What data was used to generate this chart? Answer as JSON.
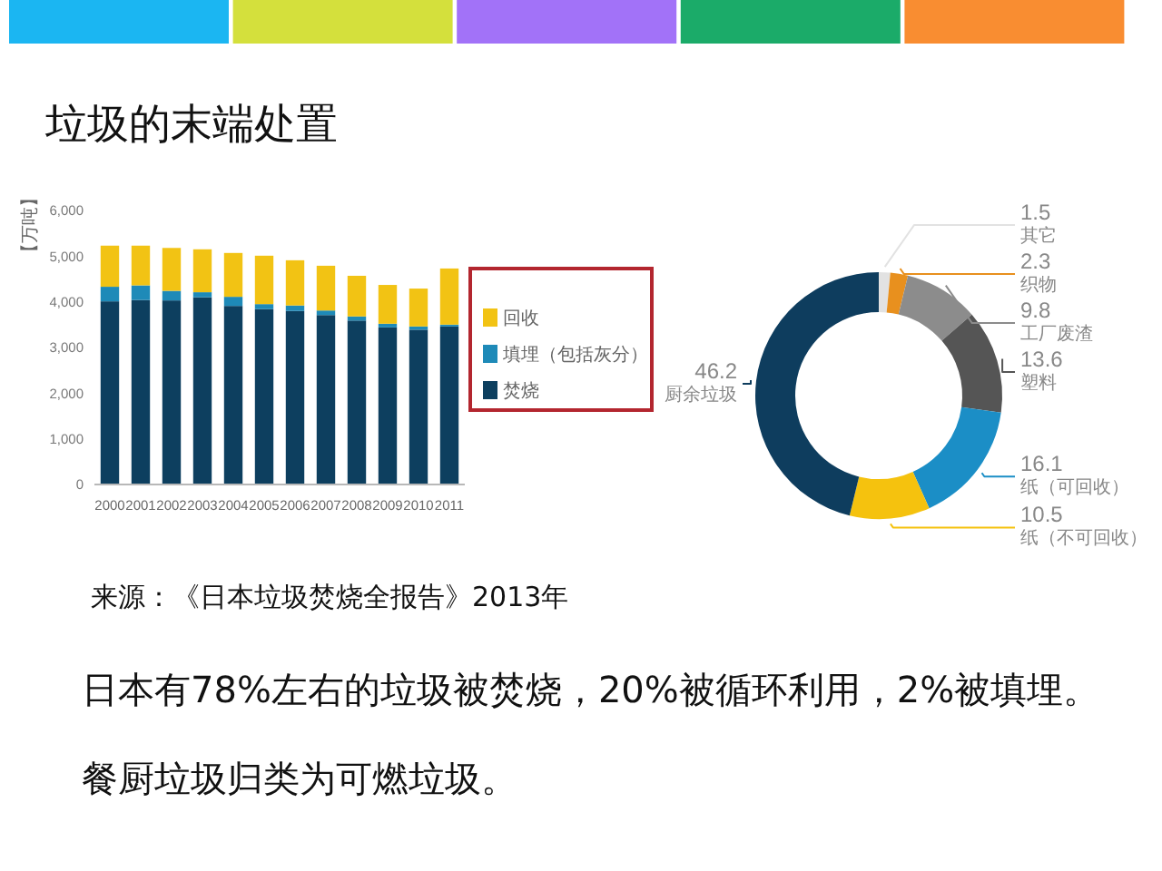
{
  "chart_data": [
    {
      "type": "bar",
      "title": "垃圾的末端处置",
      "ylabel": "【万吨】",
      "categories": [
        "2000",
        "2001",
        "2002",
        "2003",
        "2004",
        "2005",
        "2006",
        "2007",
        "2008",
        "2009",
        "2010",
        "2011"
      ],
      "stacked": true,
      "series": [
        {
          "name": "焚烧",
          "color": "#0d3f5f",
          "values": [
            4010,
            4040,
            4030,
            4100,
            3910,
            3840,
            3800,
            3710,
            3590,
            3440,
            3390,
            3460
          ]
        },
        {
          "name": "填埋（包括灰分）",
          "color": "#1e8ab8",
          "values": [
            320,
            320,
            210,
            110,
            200,
            110,
            120,
            100,
            90,
            80,
            70,
            40
          ]
        },
        {
          "name": "回收",
          "color": "#f2c314",
          "values": [
            900,
            870,
            940,
            940,
            960,
            1060,
            990,
            980,
            890,
            850,
            830,
            1230
          ]
        }
      ],
      "ylim": [
        0,
        6000
      ],
      "yticks": [
        0,
        {
          "value": 1000,
          "label": "1,000"
        },
        {
          "value": 2000,
          "label": "2,000"
        },
        {
          "value": 3000,
          "label": "3,000"
        },
        {
          "value": 4000,
          "label": "4,000"
        },
        {
          "value": 5000,
          "label": "5,000"
        },
        {
          "value": 6000,
          "label": "6,000"
        }
      ],
      "legend": "right",
      "annotations": [
        "来源：《日本垃圾焚烧全报告》2013年",
        "日本有78%左右的垃圾被焚烧，20%被循环利用，2%被填埋。",
        "餐厨垃圾归类为可燃垃圾。"
      ]
    },
    {
      "type": "donut",
      "categories": [
        "其它",
        "织物",
        "工厂废渣",
        "塑料",
        "纸（可回收）",
        "纸（不可回收）",
        "厨余垃圾"
      ],
      "values": [
        1.5,
        2.3,
        9.8,
        13.6,
        16.1,
        10.5,
        46.2
      ],
      "colors": [
        "#e2e2e2",
        "#e8901e",
        "#8c8c8c",
        "#555555",
        "#1b8ec6",
        "#f5c20e",
        "#0e3d5e"
      ],
      "data_labels": true
    }
  ]
}
